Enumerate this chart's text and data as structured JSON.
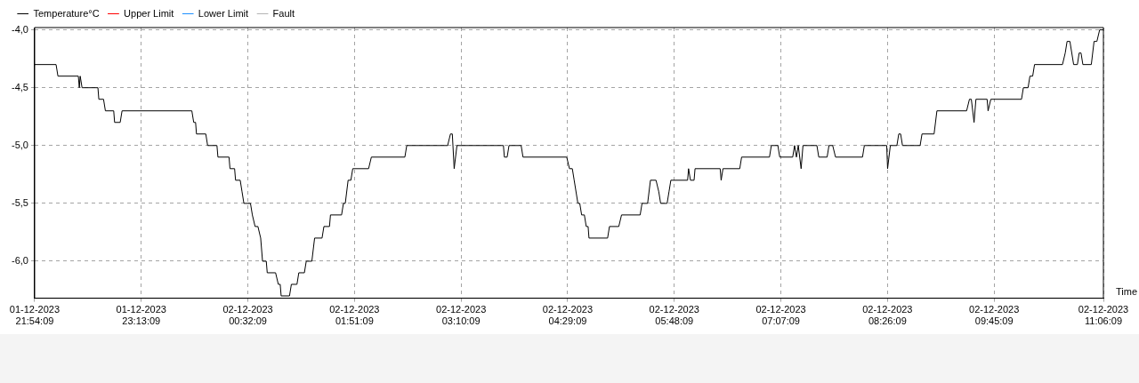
{
  "chart_data": {
    "type": "line",
    "xlabel": "Time",
    "legend": "top left",
    "grid": true,
    "marker": "none",
    "xlim": [
      "2023-12-01T21:54:09",
      "2023-12-02T11:06:09"
    ],
    "xticks": [
      {
        "value": "2023-12-01T21:54:09",
        "label": "01-12-2023\n21:54:09"
      },
      {
        "value": "2023-12-01T23:13:09",
        "label": "01-12-2023\n23:13:09"
      },
      {
        "value": "2023-12-02T00:32:09",
        "label": "02-12-2023\n00:32:09"
      },
      {
        "value": "2023-12-02T01:51:09",
        "label": "02-12-2023\n01:51:09"
      },
      {
        "value": "2023-12-02T03:10:09",
        "label": "02-12-2023\n03:10:09"
      },
      {
        "value": "2023-12-02T04:29:09",
        "label": "02-12-2023\n04:29:09"
      },
      {
        "value": "2023-12-02T05:48:09",
        "label": "02-12-2023\n05:48:09"
      },
      {
        "value": "2023-12-02T07:07:09",
        "label": "02-12-2023\n07:07:09"
      },
      {
        "value": "2023-12-02T08:26:09",
        "label": "02-12-2023\n08:26:09"
      },
      {
        "value": "2023-12-02T09:45:09",
        "label": "02-12-2023\n09:45:09"
      },
      {
        "value": "2023-12-02T11:06:09",
        "label": "02-12-2023\n11:06:09"
      }
    ],
    "ylim": [
      -6.32,
      -3.98
    ],
    "yticks": [
      {
        "value": -6,
        "label": "-6,0"
      },
      {
        "value": -5.5,
        "label": "-5,5"
      },
      {
        "value": -5,
        "label": "-5,0"
      },
      {
        "value": -4.5,
        "label": "-4,5"
      },
      {
        "value": -4,
        "label": "-4,0"
      }
    ],
    "series": [
      {
        "name": "Temperature°C",
        "color": "#000000",
        "line_style": "solid",
        "x": [
          "2023-12-01T21:54:09",
          "2023-12-01T22:10:01",
          "2023-12-01T22:11:24",
          "2023-12-01T22:26:31",
          "2023-12-01T22:27:14",
          "2023-12-01T22:27:54",
          "2023-12-01T22:29:17",
          "2023-12-01T22:41:02",
          "2023-12-01T22:41:42",
          "2023-12-01T22:45:11",
          "2023-12-01T22:46:34",
          "2023-12-01T22:52:44",
          "2023-12-01T22:53:24",
          "2023-12-01T22:57:32",
          "2023-12-01T22:58:55",
          "2023-12-01T23:50:38",
          "2023-12-01T23:52:01",
          "2023-12-01T23:53:24",
          "2023-12-01T23:54:04",
          "2023-12-02T00:00:58",
          "2023-12-02T00:02:20",
          "2023-12-02T00:09:14",
          "2023-12-02T00:09:58",
          "2023-12-02T00:18:11",
          "2023-12-02T00:18:54",
          "2023-12-02T00:22:19",
          "2023-12-02T00:23:02",
          "2023-12-02T00:26:28",
          "2023-12-02T00:27:50",
          "2023-12-02T00:29:13",
          "2023-12-02T00:34:05",
          "2023-12-02T00:35:28",
          "2023-12-02T00:37:30",
          "2023-12-02T00:39:36",
          "2023-12-02T00:41:38",
          "2023-12-02T00:43:01",
          "2023-12-02T00:45:47",
          "2023-12-02T00:46:30",
          "2023-12-02T00:52:41",
          "2023-12-02T00:54:43",
          "2023-12-02T00:56:06",
          "2023-12-02T00:56:49",
          "2023-12-02T01:03:00",
          "2023-12-02T01:04:23",
          "2023-12-02T01:08:31",
          "2023-12-02T01:09:54",
          "2023-12-02T01:14:02",
          "2023-12-02T01:15:25",
          "2023-12-02T01:19:34",
          "2023-12-02T01:21:36",
          "2023-12-02T01:27:07",
          "2023-12-02T01:28:30",
          "2023-12-02T01:32:38",
          "2023-12-02T01:33:22",
          "2023-12-02T01:41:35",
          "2023-12-02T01:42:58",
          "2023-12-02T01:44:20",
          "2023-12-02T01:46:26",
          "2023-12-02T01:48:29",
          "2023-12-02T01:49:52",
          "2023-12-02T02:01:37",
          "2023-12-02T02:03:40",
          "2023-12-02T02:28:30",
          "2023-12-02T02:29:53",
          "2023-12-02T03:00:11",
          "2023-12-02T03:02:17",
          "2023-12-02T03:03:40",
          "2023-12-02T03:05:02",
          "2023-12-02T03:07:05",
          "2023-12-02T03:41:31",
          "2023-12-02T03:42:14",
          "2023-12-02T03:44:17",
          "2023-12-02T03:45:40",
          "2023-12-02T03:54:40",
          "2023-12-02T03:56:02",
          "2023-12-02T04:28:26",
          "2023-12-02T04:30:29",
          "2023-12-02T04:32:35",
          "2023-12-02T04:33:58",
          "2023-12-02T04:36:43",
          "2023-12-02T04:38:06",
          "2023-12-02T04:39:29",
          "2023-12-02T04:41:31",
          "2023-12-02T04:42:54",
          "2023-12-02T04:44:17",
          "2023-12-02T04:44:56",
          "2023-12-02T04:58:44",
          "2023-12-02T05:00:07",
          "2023-12-02T05:07:01",
          "2023-12-02T05:09:04",
          "2023-12-02T05:22:52",
          "2023-12-02T05:24:14",
          "2023-12-02T05:28:23",
          "2023-12-02T05:30:29",
          "2023-12-02T05:34:37",
          "2023-12-02T05:36:40",
          "2023-12-02T05:38:02",
          "2023-12-02T05:42:50",
          "2023-12-02T05:44:13",
          "2023-12-02T05:45:36",
          "2023-12-02T05:58:01",
          "2023-12-02T05:58:44",
          "2023-12-02T06:00:07",
          "2023-12-02T06:02:49",
          "2023-12-02T06:03:32",
          "2023-12-02T06:22:08",
          "2023-12-02T06:22:52",
          "2023-12-02T06:24:14",
          "2023-12-02T06:36:40",
          "2023-12-02T06:38:02",
          "2023-12-02T06:58:41",
          "2023-12-02T07:00:04",
          "2023-12-02T07:04:55",
          "2023-12-02T07:06:18",
          "2023-12-02T07:15:54",
          "2023-12-02T07:17:17",
          "2023-12-02T07:18:40",
          "2023-12-02T07:20:02",
          "2023-12-02T07:22:08",
          "2023-12-02T07:23:31",
          "2023-12-02T07:33:50",
          "2023-12-02T07:35:13",
          "2023-12-02T07:41:24",
          "2023-12-02T07:42:47",
          "2023-12-02T07:45:32",
          "2023-12-02T07:47:38",
          "2023-12-02T08:07:37",
          "2023-12-02T08:09:00",
          "2023-12-02T08:25:34",
          "2023-12-02T08:26:13",
          "2023-12-02T08:28:16",
          "2023-12-02T08:33:07",
          "2023-12-02T08:34:30",
          "2023-12-02T08:35:53",
          "2023-12-02T08:37:16",
          "2023-12-02T08:50:20",
          "2023-12-02T08:51:43",
          "2023-12-02T09:00:40",
          "2023-12-02T09:02:46",
          "2023-12-02T09:24:47",
          "2023-12-02T09:26:53",
          "2023-12-02T09:28:16",
          "2023-12-02T09:30:18",
          "2023-12-02T09:31:41",
          "2023-12-02T09:39:58",
          "2023-12-02T09:40:41",
          "2023-12-02T09:42:43",
          "2023-12-02T10:05:28",
          "2023-12-02T10:06:50",
          "2023-12-02T10:10:19",
          "2023-12-02T10:11:42",
          "2023-12-02T10:13:44",
          "2023-12-02T10:15:07",
          "2023-12-02T10:35:49",
          "2023-12-02T10:37:52",
          "2023-12-02T10:39:14",
          "2023-12-02T10:41:20",
          "2023-12-02T10:44:06",
          "2023-12-02T10:46:52",
          "2023-12-02T10:48:11",
          "2023-12-02T10:49:34",
          "2023-12-02T10:50:56",
          "2023-12-02T10:57:11",
          "2023-12-02T10:59:13",
          "2023-12-02T11:01:19",
          "2023-12-02T11:03:22",
          "2023-12-02T11:06:09"
        ],
        "values": [
          -4.3,
          -4.3,
          -4.4,
          -4.4,
          -4.5,
          -4.4,
          -4.5,
          -4.5,
          -4.6,
          -4.6,
          -4.7,
          -4.7,
          -4.8,
          -4.8,
          -4.7,
          -4.7,
          -4.8,
          -4.8,
          -4.9,
          -4.9,
          -5.0,
          -5.0,
          -5.1,
          -5.1,
          -5.2,
          -5.2,
          -5.3,
          -5.3,
          -5.4,
          -5.5,
          -5.5,
          -5.6,
          -5.7,
          -5.7,
          -5.8,
          -6.0,
          -6.0,
          -6.1,
          -6.1,
          -6.2,
          -6.2,
          -6.3,
          -6.3,
          -6.2,
          -6.2,
          -6.1,
          -6.1,
          -6.0,
          -6.0,
          -5.8,
          -5.8,
          -5.7,
          -5.7,
          -5.6,
          -5.6,
          -5.5,
          -5.5,
          -5.3,
          -5.3,
          -5.2,
          -5.2,
          -5.1,
          -5.1,
          -5.0,
          -5.0,
          -4.9,
          -4.9,
          -5.2,
          -5.0,
          -5.0,
          -5.1,
          -5.1,
          -5.0,
          -5.0,
          -5.1,
          -5.1,
          -5.2,
          -5.2,
          -5.3,
          -5.5,
          -5.5,
          -5.6,
          -5.6,
          -5.7,
          -5.7,
          -5.8,
          -5.8,
          -5.7,
          -5.7,
          -5.6,
          -5.6,
          -5.5,
          -5.5,
          -5.3,
          -5.3,
          -5.4,
          -5.5,
          -5.5,
          -5.4,
          -5.3,
          -5.3,
          -5.2,
          -5.3,
          -5.3,
          -5.2,
          -5.2,
          -5.3,
          -5.2,
          -5.2,
          -5.1,
          -5.1,
          -5.0,
          -5.0,
          -5.1,
          -5.1,
          -5.0,
          -5.1,
          -5.0,
          -5.2,
          -5.0,
          -5.0,
          -5.1,
          -5.1,
          -5.0,
          -5.0,
          -5.1,
          -5.1,
          -5.0,
          -5.0,
          -5.2,
          -5.0,
          -5.0,
          -4.9,
          -4.9,
          -5.0,
          -5.0,
          -4.9,
          -4.9,
          -4.7,
          -4.7,
          -4.6,
          -4.6,
          -4.8,
          -4.6,
          -4.6,
          -4.7,
          -4.6,
          -4.6,
          -4.5,
          -4.5,
          -4.4,
          -4.4,
          -4.3,
          -4.3,
          -4.2,
          -4.1,
          -4.1,
          -4.3,
          -4.3,
          -4.2,
          -4.2,
          -4.3,
          -4.3,
          -4.1,
          -4.1,
          -4.0,
          -4.0
        ]
      },
      {
        "name": "Upper Limit",
        "color": "#ff0000",
        "line_style": "solid"
      },
      {
        "name": "Lower Limit",
        "color": "#1e90ff",
        "line_style": "solid"
      },
      {
        "name": "Fault",
        "color": "#b4b4b4",
        "line_style": "dotted"
      }
    ]
  }
}
